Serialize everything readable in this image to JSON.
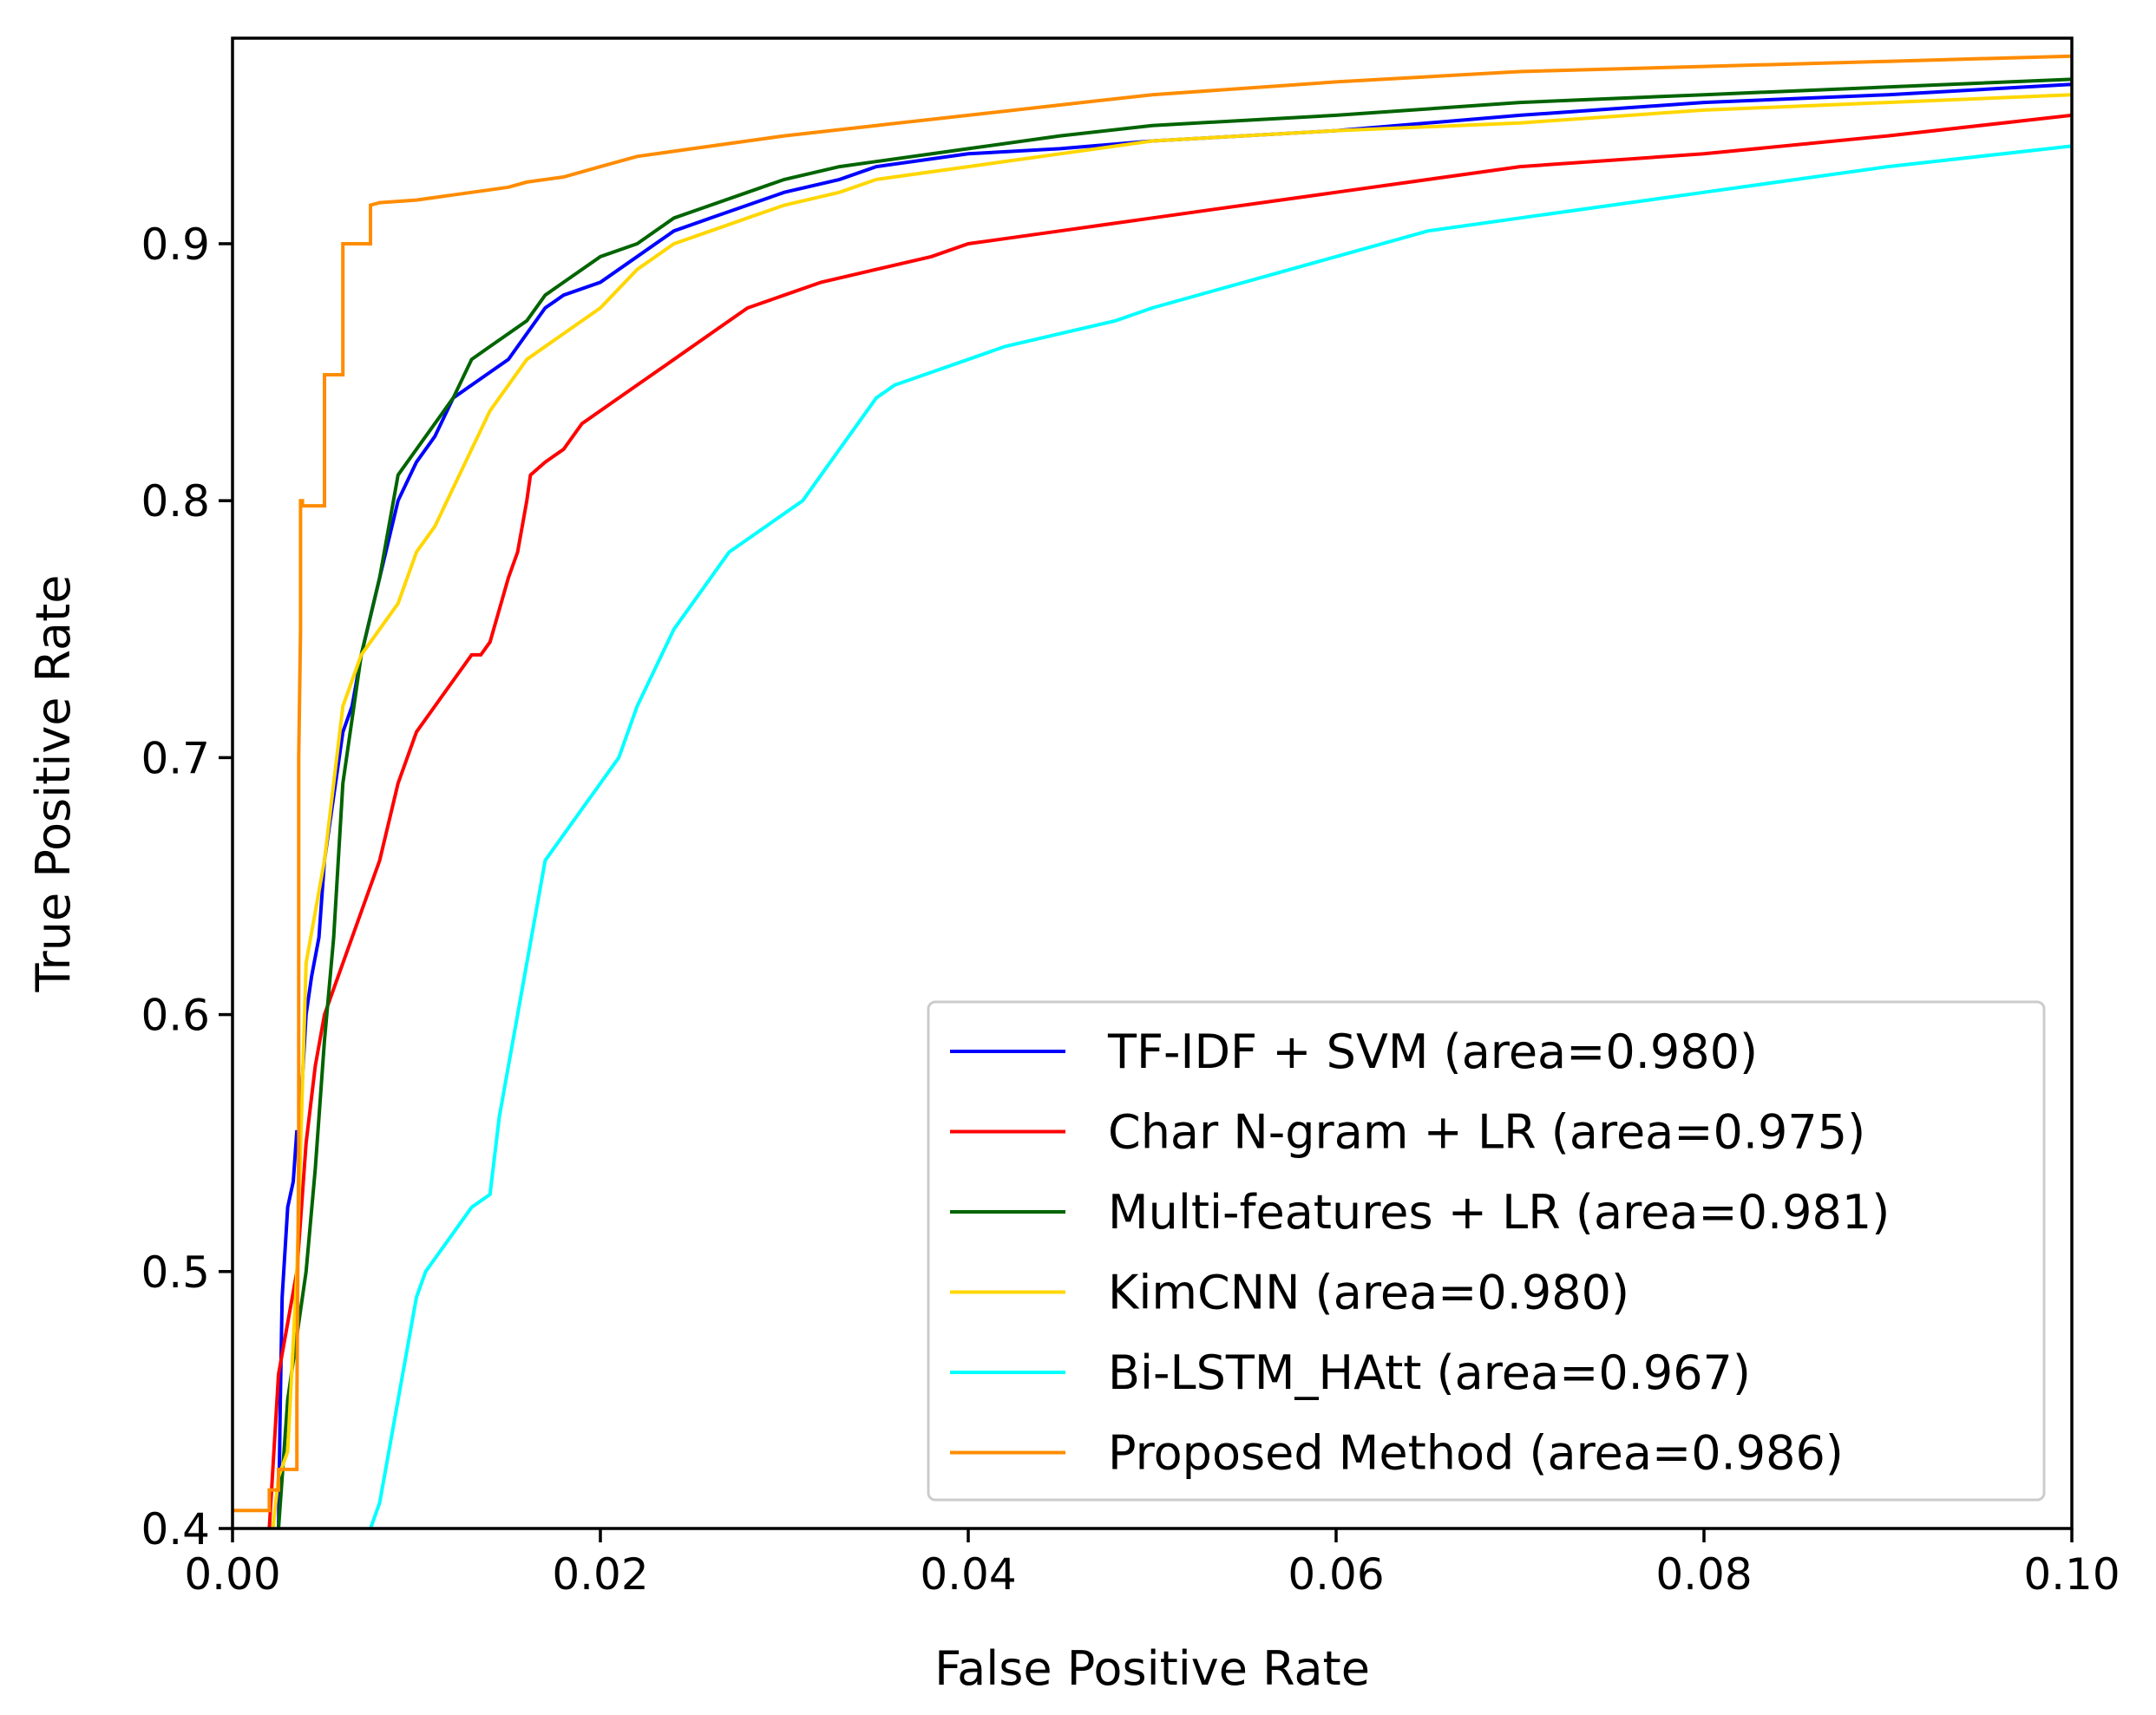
{
  "chart_data": {
    "type": "line",
    "title": "",
    "xlabel": "False Positive Rate",
    "ylabel": "True Positive Rate",
    "xlim": [
      0.0,
      0.1
    ],
    "ylim": [
      0.4,
      0.98
    ],
    "xticks": [
      "0.00",
      "0.02",
      "0.04",
      "0.06",
      "0.08",
      "0.10"
    ],
    "xtick_values": [
      0.0,
      0.02,
      0.04,
      0.06,
      0.08,
      0.1
    ],
    "yticks": [
      "0.4",
      "0.5",
      "0.6",
      "0.7",
      "0.8",
      "0.9"
    ],
    "ytick_values": [
      0.4,
      0.5,
      0.6,
      0.7,
      0.8,
      0.9
    ],
    "grid": false,
    "legend_position": "lower-right",
    "series": [
      {
        "name": "TF-IDF + SVM (area=0.980)",
        "color": "#0000ff",
        "x": [
          0.0025,
          0.0026,
          0.0027,
          0.003,
          0.0033,
          0.0035,
          0.0036,
          0.004,
          0.0043,
          0.0047,
          0.005,
          0.006,
          0.0065,
          0.007,
          0.008,
          0.009,
          0.01,
          0.011,
          0.012,
          0.013,
          0.015,
          0.016,
          0.017,
          0.018,
          0.02,
          0.022,
          0.024,
          0.026,
          0.028,
          0.03,
          0.033,
          0.035,
          0.04,
          0.045,
          0.05,
          0.06,
          0.07,
          0.08,
          0.09,
          0.1
        ],
        "y": [
          0.4,
          0.45,
          0.49,
          0.525,
          0.535,
          0.555,
          0.55,
          0.6,
          0.615,
          0.63,
          0.66,
          0.71,
          0.72,
          0.74,
          0.77,
          0.8,
          0.815,
          0.825,
          0.84,
          0.845,
          0.855,
          0.865,
          0.875,
          0.88,
          0.885,
          0.895,
          0.905,
          0.91,
          0.915,
          0.92,
          0.925,
          0.93,
          0.935,
          0.937,
          0.94,
          0.944,
          0.95,
          0.955,
          0.958,
          0.962
        ]
      },
      {
        "name": "Char N-gram + LR (area=0.975)",
        "color": "#ff0000",
        "x": [
          0.002,
          0.0025,
          0.003,
          0.0035,
          0.004,
          0.0045,
          0.005,
          0.006,
          0.007,
          0.008,
          0.009,
          0.01,
          0.011,
          0.012,
          0.013,
          0.0135,
          0.014,
          0.015,
          0.0155,
          0.016,
          0.0162,
          0.017,
          0.018,
          0.019,
          0.02,
          0.022,
          0.024,
          0.026,
          0.028,
          0.03,
          0.032,
          0.035,
          0.038,
          0.04,
          0.045,
          0.05,
          0.06,
          0.07,
          0.08,
          0.09,
          0.1
        ],
        "y": [
          0.4,
          0.46,
          0.48,
          0.5,
          0.55,
          0.58,
          0.6,
          0.62,
          0.64,
          0.66,
          0.69,
          0.71,
          0.72,
          0.73,
          0.74,
          0.74,
          0.745,
          0.77,
          0.78,
          0.8,
          0.81,
          0.815,
          0.82,
          0.83,
          0.835,
          0.845,
          0.855,
          0.865,
          0.875,
          0.88,
          0.885,
          0.89,
          0.895,
          0.9,
          0.905,
          0.91,
          0.92,
          0.93,
          0.935,
          0.942,
          0.95
        ]
      },
      {
        "name": "Multi-features + LR (area=0.981)",
        "color": "#006400",
        "x": [
          0.0025,
          0.003,
          0.004,
          0.0045,
          0.005,
          0.0055,
          0.006,
          0.007,
          0.008,
          0.0085,
          0.009,
          0.01,
          0.011,
          0.012,
          0.013,
          0.014,
          0.015,
          0.016,
          0.017,
          0.018,
          0.019,
          0.02,
          0.022,
          0.024,
          0.026,
          0.028,
          0.03,
          0.033,
          0.035,
          0.04,
          0.045,
          0.05,
          0.06,
          0.07,
          0.08,
          0.09,
          0.1
        ],
        "y": [
          0.4,
          0.45,
          0.5,
          0.54,
          0.59,
          0.63,
          0.69,
          0.74,
          0.77,
          0.79,
          0.81,
          0.82,
          0.83,
          0.84,
          0.855,
          0.86,
          0.865,
          0.87,
          0.88,
          0.885,
          0.89,
          0.895,
          0.9,
          0.91,
          0.915,
          0.92,
          0.925,
          0.93,
          0.932,
          0.937,
          0.942,
          0.946,
          0.95,
          0.955,
          0.958,
          0.961,
          0.964
        ]
      },
      {
        "name": "KimCNN (area=0.980)",
        "color": "#ffd700",
        "x": [
          0.0022,
          0.0025,
          0.003,
          0.0035,
          0.004,
          0.0045,
          0.005,
          0.0055,
          0.006,
          0.007,
          0.008,
          0.009,
          0.01,
          0.011,
          0.012,
          0.013,
          0.014,
          0.015,
          0.016,
          0.018,
          0.02,
          0.022,
          0.024,
          0.026,
          0.028,
          0.03,
          0.033,
          0.035,
          0.04,
          0.045,
          0.05,
          0.06,
          0.07,
          0.08,
          0.09,
          0.1
        ],
        "y": [
          0.4,
          0.42,
          0.43,
          0.5,
          0.62,
          0.64,
          0.66,
          0.69,
          0.72,
          0.74,
          0.75,
          0.76,
          0.78,
          0.79,
          0.805,
          0.82,
          0.835,
          0.845,
          0.855,
          0.865,
          0.875,
          0.89,
          0.9,
          0.905,
          0.91,
          0.915,
          0.92,
          0.925,
          0.93,
          0.935,
          0.94,
          0.944,
          0.947,
          0.952,
          0.955,
          0.958
        ]
      },
      {
        "name": "Bi-LSTM_HAtt (area=0.967)",
        "color": "#00ffff",
        "x": [
          0.0075,
          0.008,
          0.0085,
          0.009,
          0.0095,
          0.01,
          0.0105,
          0.011,
          0.012,
          0.013,
          0.014,
          0.0145,
          0.015,
          0.0155,
          0.016,
          0.017,
          0.018,
          0.019,
          0.02,
          0.021,
          0.022,
          0.023,
          0.024,
          0.025,
          0.026,
          0.027,
          0.028,
          0.03,
          0.031,
          0.032,
          0.033,
          0.034,
          0.035,
          0.036,
          0.038,
          0.04,
          0.042,
          0.045,
          0.048,
          0.05,
          0.055,
          0.06,
          0.065,
          0.07,
          0.075,
          0.08,
          0.09,
          0.1
        ],
        "y": [
          0.4,
          0.41,
          0.43,
          0.45,
          0.47,
          0.49,
          0.5,
          0.505,
          0.515,
          0.525,
          0.53,
          0.56,
          0.58,
          0.6,
          0.62,
          0.66,
          0.67,
          0.68,
          0.69,
          0.7,
          0.72,
          0.735,
          0.75,
          0.76,
          0.77,
          0.78,
          0.785,
          0.795,
          0.8,
          0.81,
          0.82,
          0.83,
          0.84,
          0.845,
          0.85,
          0.855,
          0.86,
          0.865,
          0.87,
          0.875,
          0.885,
          0.895,
          0.905,
          0.91,
          0.915,
          0.92,
          0.93,
          0.938
        ]
      },
      {
        "name": "Proposed Method (area=0.986)",
        "color": "#ff8c00",
        "x": [
          0.0,
          0.002,
          0.002,
          0.0025,
          0.0025,
          0.0035,
          0.0035,
          0.0036,
          0.0036,
          0.0037,
          0.0037,
          0.0038,
          0.0038,
          0.005,
          0.005,
          0.006,
          0.006,
          0.0065,
          0.0075,
          0.0075,
          0.008,
          0.01,
          0.012,
          0.014,
          0.015,
          0.016,
          0.018,
          0.02,
          0.022,
          0.025,
          0.03,
          0.035,
          0.04,
          0.045,
          0.05,
          0.06,
          0.07,
          0.08,
          0.09,
          0.1
        ],
        "y": [
          0.407,
          0.407,
          0.415,
          0.415,
          0.423,
          0.423,
          0.45,
          0.55,
          0.7,
          0.75,
          0.8,
          0.8,
          0.798,
          0.798,
          0.849,
          0.849,
          0.9,
          0.9,
          0.9,
          0.915,
          0.916,
          0.917,
          0.919,
          0.921,
          0.922,
          0.924,
          0.926,
          0.93,
          0.934,
          0.937,
          0.942,
          0.946,
          0.95,
          0.954,
          0.958,
          0.963,
          0.967,
          0.969,
          0.971,
          0.973
        ]
      }
    ]
  }
}
